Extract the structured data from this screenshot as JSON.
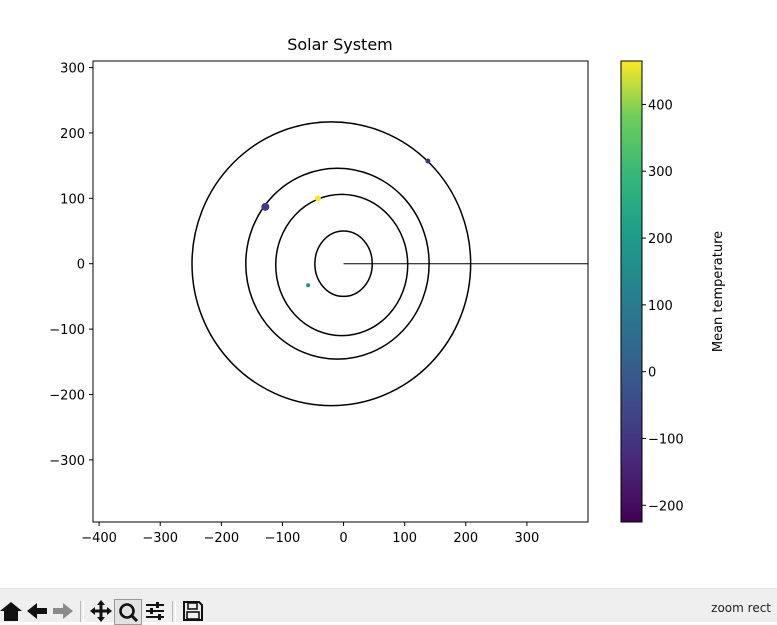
{
  "chart_data": {
    "type": "scatter",
    "title": "Solar System",
    "xlabel": "",
    "ylabel": "",
    "xlim": [
      -410,
      400
    ],
    "ylim": [
      -395,
      310
    ],
    "x_ticks": [
      -400,
      -300,
      -200,
      -100,
      0,
      100,
      200,
      300
    ],
    "y_ticks": [
      -300,
      -200,
      -100,
      0,
      100,
      200,
      300
    ],
    "orbits": [
      {
        "center": [
          0,
          0
        ],
        "rx": 47,
        "ry": 50
      },
      {
        "center": [
          -3,
          -2
        ],
        "rx": 108,
        "ry": 108
      },
      {
        "center": [
          -10,
          0
        ],
        "rx": 150,
        "ry": 146
      },
      {
        "center": [
          -20,
          0
        ],
        "rx": 228,
        "ry": 217
      }
    ],
    "sun_line": {
      "from": [
        0,
        0
      ],
      "to": [
        400,
        0
      ]
    },
    "points": [
      {
        "x": -128,
        "y": 87,
        "temp": -90,
        "size": 4
      },
      {
        "x": -42,
        "y": 100,
        "temp": 462,
        "size": 3
      },
      {
        "x": 138,
        "y": 157,
        "temp": -110,
        "size": 2.5
      },
      {
        "x": -58,
        "y": -33,
        "temp": 167,
        "size": 2
      }
    ],
    "colorbar": {
      "label": "Mean temperature",
      "min": -225,
      "max": 465,
      "ticks": [
        -200,
        -100,
        0,
        100,
        200,
        300,
        400
      ],
      "colormap": "viridis"
    }
  },
  "toolbar": {
    "buttons": [
      "home",
      "back",
      "forward",
      "pan",
      "zoom",
      "configure",
      "save"
    ],
    "mode_label": "zoom rect"
  }
}
